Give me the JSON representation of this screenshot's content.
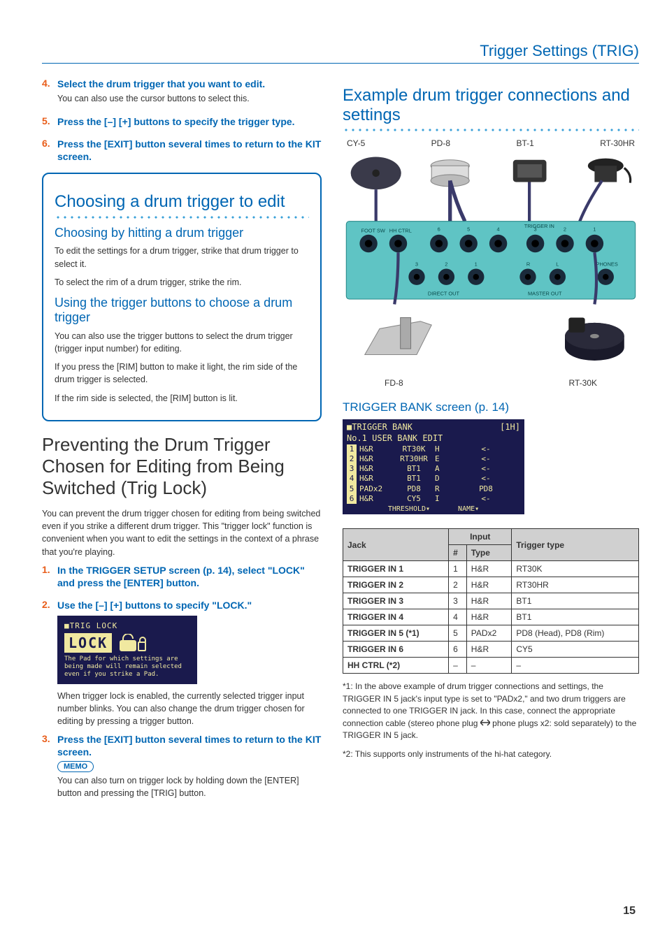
{
  "header": "Trigger Settings (TRIG)",
  "left": {
    "steps_top": [
      {
        "num": "4.",
        "head": "Select the drum trigger that you want to edit.",
        "body": "You can also use the cursor buttons to select this."
      },
      {
        "num": "5.",
        "head": "Press the [–] [+] buttons to specify the trigger type.",
        "body": ""
      },
      {
        "num": "6.",
        "head": "Press the [EXIT] button several times to return to the KIT screen.",
        "body": ""
      }
    ],
    "panel": {
      "h2": "Choosing a drum trigger to edit",
      "sub1_title": "Choosing by hitting a drum trigger",
      "sub1_p1": "To edit the settings for a drum trigger, strike that drum trigger to select it.",
      "sub1_p2": "To select the rim of a drum trigger, strike the rim.",
      "sub2_title": "Using the trigger buttons to choose a drum trigger",
      "sub2_p1": "You can also use the trigger buttons to select the drum trigger (trigger input number) for editing.",
      "sub2_p2": "If you press the [RIM] button to make it light, the rim side of the drum trigger is selected.",
      "sub2_p3": "If the rim side is selected, the [RIM] button is lit."
    },
    "h1": "Preventing the Drum Trigger Chosen for Editing from Being Switched (Trig Lock)",
    "intro": "You can prevent the drum trigger chosen for editing from being switched even if you strike a different drum trigger. This \"trigger lock\" function is convenient when you want to edit the settings in the context of a phrase that you're playing.",
    "steps_bottom": [
      {
        "num": "1.",
        "head": "In the TRIGGER SETUP screen (p. 14), select \"LOCK\" and press the [ENTER] button.",
        "body": ""
      },
      {
        "num": "2.",
        "head": "Use the [–] [+] buttons to specify \"LOCK.\"",
        "body": ""
      }
    ],
    "lcd_lock": {
      "title": "■TRIG LOCK",
      "word": "LOCK",
      "desc": "The Pad for which settings are being made will remain selected even if you strike a Pad."
    },
    "post_lock": "When trigger lock is enabled, the currently selected trigger input number blinks. You can also change the drum trigger chosen for editing by pressing a trigger button.",
    "step3": {
      "num": "3.",
      "head": "Press the [EXIT] button several times to return to the KIT screen."
    },
    "memo_label": "MEMO",
    "memo_body": "You can also turn on trigger lock by holding down the [ENTER] button and pressing the [TRIG] button."
  },
  "right": {
    "h2": "Example drum trigger connections and settings",
    "top_labels": [
      "CY-5",
      "PD-8",
      "BT-1",
      "RT-30HR"
    ],
    "rear_labels": {
      "footsw": "FOOT SW",
      "hhctrl": "HH CTRL",
      "trigin": "TRIGGER IN",
      "dout": "DIRECT OUT",
      "mout": "MASTER OUT",
      "phones": "PHONES",
      "r": "R",
      "l": "L"
    },
    "jack_nums": [
      "6",
      "5",
      "4",
      "3",
      "2",
      "1"
    ],
    "dout_nums": [
      "3",
      "2",
      "1"
    ],
    "bottom_labels": [
      "FD-8",
      "RT-30K"
    ],
    "bank_title": "TRIGGER BANK screen (p. 14)",
    "lcd_bank": {
      "line1_left": "■TRIGGER BANK",
      "line1_right": "[1H]",
      "line2": "No.1  USER BANK  EDIT",
      "rows": [
        {
          "n": "1",
          "t": "H&R",
          "name": "RT30K",
          "m": "H",
          "r": "<-"
        },
        {
          "n": "2",
          "t": "H&R",
          "name": "RT30HR",
          "m": "E",
          "r": "<-"
        },
        {
          "n": "3",
          "t": "H&R",
          "name": "BT1",
          "m": "A",
          "r": "<-"
        },
        {
          "n": "4",
          "t": "H&R",
          "name": "BT1",
          "m": "D",
          "r": "<-"
        },
        {
          "n": "5",
          "t": "PADx2",
          "name": "PD8",
          "m": "R",
          "r": "PD8"
        },
        {
          "n": "6",
          "t": "H&R",
          "name": "CY5",
          "m": "I",
          "r": "<-"
        }
      ],
      "ftr_left": "THRESHOLD▾",
      "ftr_right": "NAME▾"
    },
    "table": {
      "h_jack": "Jack",
      "h_input": "Input",
      "h_num": "#",
      "h_type": "Type",
      "h_trig": "Trigger type",
      "rows": [
        {
          "jack": "TRIGGER IN 1",
          "num": "1",
          "type": "H&R",
          "trig": "RT30K"
        },
        {
          "jack": "TRIGGER IN 2",
          "num": "2",
          "type": "H&R",
          "trig": "RT30HR"
        },
        {
          "jack": "TRIGGER IN 3",
          "num": "3",
          "type": "H&R",
          "trig": "BT1"
        },
        {
          "jack": "TRIGGER IN 4",
          "num": "4",
          "type": "H&R",
          "trig": "BT1"
        },
        {
          "jack": "TRIGGER IN 5 (*1)",
          "num": "5",
          "type": "PADx2",
          "trig": "PD8 (Head), PD8 (Rim)"
        },
        {
          "jack": "TRIGGER IN 6",
          "num": "6",
          "type": "H&R",
          "trig": "CY5"
        },
        {
          "jack": "HH CTRL (*2)",
          "num": "–",
          "type": "–",
          "trig": "–"
        }
      ]
    },
    "notes": {
      "n1_pre": "*1: In the above example of drum trigger connections and settings, the TRIGGER IN 5 jack's input type is set to \"PADx2,\" and two drum triggers are connected to one TRIGGER IN jack. In this case, connect the appropriate connection cable (stereo phone plug ",
      "n1_post": " phone plugs x2: sold separately) to the TRIGGER IN 5 jack.",
      "n2": "*2: This supports only instruments of the hi-hat category."
    }
  },
  "page_num": "15",
  "colors": {
    "accent": "#0066b3",
    "orange": "#e85d1a",
    "teal": "#5fc4c4",
    "lcd_bg": "#1a1a4d",
    "lcd_fg": "#f0e8a0"
  }
}
